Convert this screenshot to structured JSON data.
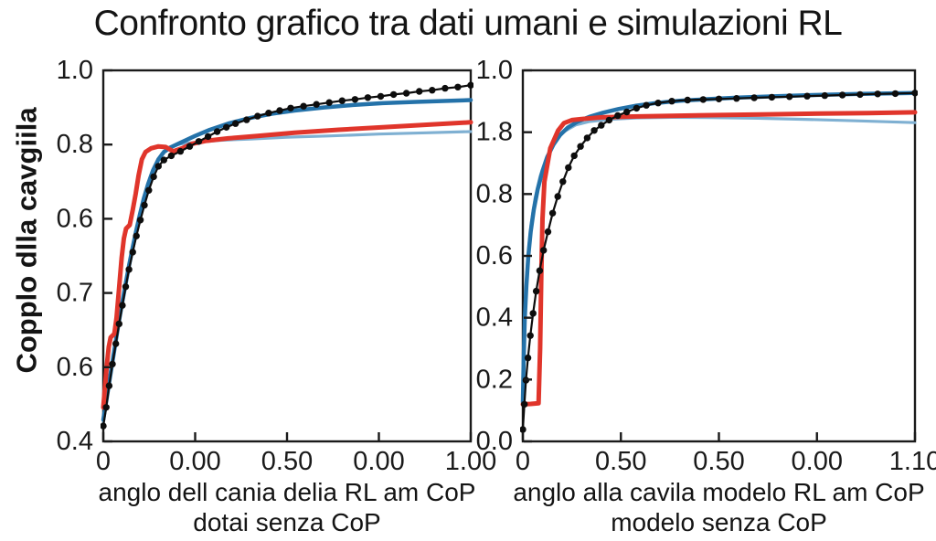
{
  "title": "Confronto grafico tra dati umani e simulazioni RL",
  "background_color": "#ffffff",
  "text_color": "#1a1a1a",
  "chart_data": [
    {
      "type": "line",
      "position": "left",
      "title": "",
      "ylabel": "Copplo dlla cavgiila",
      "xlabel_lines": [
        "anglo dell cania delia RL am CoP",
        "dotai senza CoP"
      ],
      "x_tick_labels": [
        "0",
        "0.00",
        "0.50",
        "0.00",
        "1.00"
      ],
      "y_tick_labels": [
        "1.0",
        "0.8",
        "0.6",
        "0.7",
        "0.6",
        "0.4"
      ],
      "y_value_range": {
        "bottom": 0.4,
        "top": 1.0
      },
      "x_value_range": {
        "left": 0,
        "right": 1
      },
      "grid": false,
      "legend": false,
      "series": [
        {
          "name": "light-blue",
          "color": "#7fb0d2",
          "line_width": 3.2,
          "markers": false,
          "points": [
            [
              0,
              0.43
            ],
            [
              0.012,
              0.48
            ],
            [
              0.025,
              0.53
            ],
            [
              0.04,
              0.582
            ],
            [
              0.055,
              0.632
            ],
            [
              0.07,
              0.68
            ],
            [
              0.085,
              0.724
            ],
            [
              0.1,
              0.762
            ],
            [
              0.115,
              0.796
            ],
            [
              0.13,
              0.826
            ],
            [
              0.145,
              0.85
            ],
            [
              0.16,
              0.866
            ],
            [
              0.18,
              0.876
            ],
            [
              0.21,
              0.881
            ],
            [
              0.26,
              0.884
            ],
            [
              0.32,
              0.887
            ],
            [
              0.4,
              0.889
            ],
            [
              0.5,
              0.892
            ],
            [
              0.62,
              0.894
            ],
            [
              0.75,
              0.897
            ],
            [
              0.88,
              0.899
            ],
            [
              1,
              0.901
            ]
          ]
        },
        {
          "name": "dark-blue",
          "color": "#2472a9",
          "line_width": 4.5,
          "markers": false,
          "points": [
            [
              0,
              0.435
            ],
            [
              0.01,
              0.472
            ],
            [
              0.02,
              0.51
            ],
            [
              0.03,
              0.548
            ],
            [
              0.04,
              0.585
            ],
            [
              0.05,
              0.62
            ],
            [
              0.06,
              0.652
            ],
            [
              0.07,
              0.684
            ],
            [
              0.08,
              0.714
            ],
            [
              0.09,
              0.742
            ],
            [
              0.1,
              0.768
            ],
            [
              0.11,
              0.792
            ],
            [
              0.122,
              0.816
            ],
            [
              0.135,
              0.838
            ],
            [
              0.15,
              0.856
            ],
            [
              0.165,
              0.868
            ],
            [
              0.185,
              0.876
            ],
            [
              0.21,
              0.883
            ],
            [
              0.25,
              0.894
            ],
            [
              0.29,
              0.904
            ],
            [
              0.34,
              0.914
            ],
            [
              0.4,
              0.923
            ],
            [
              0.46,
              0.93
            ],
            [
              0.52,
              0.935
            ],
            [
              0.6,
              0.94
            ],
            [
              0.68,
              0.944
            ],
            [
              0.76,
              0.947
            ],
            [
              0.85,
              0.949
            ],
            [
              1,
              0.952
            ]
          ]
        },
        {
          "name": "red",
          "color": "#e0352b",
          "line_width": 5,
          "markers": false,
          "points": [
            [
              0,
              0.455
            ],
            [
              0.005,
              0.49
            ],
            [
              0.01,
              0.525
            ],
            [
              0.015,
              0.553
            ],
            [
              0.02,
              0.568
            ],
            [
              0.03,
              0.574
            ],
            [
              0.036,
              0.6
            ],
            [
              0.043,
              0.648
            ],
            [
              0.05,
              0.697
            ],
            [
              0.056,
              0.728
            ],
            [
              0.062,
              0.744
            ],
            [
              0.072,
              0.75
            ],
            [
              0.08,
              0.774
            ],
            [
              0.088,
              0.8
            ],
            [
              0.096,
              0.83
            ],
            [
              0.105,
              0.856
            ],
            [
              0.115,
              0.868
            ],
            [
              0.13,
              0.874
            ],
            [
              0.15,
              0.877
            ],
            [
              0.17,
              0.876
            ],
            [
              0.19,
              0.869
            ],
            [
              0.215,
              0.874
            ],
            [
              0.24,
              0.881
            ],
            [
              0.28,
              0.886
            ],
            [
              0.34,
              0.89
            ],
            [
              0.42,
              0.894
            ],
            [
              0.52,
              0.899
            ],
            [
              0.64,
              0.904
            ],
            [
              0.76,
              0.908
            ],
            [
              0.88,
              0.912
            ],
            [
              1,
              0.916
            ]
          ]
        },
        {
          "name": "black-dotted",
          "color": "#0d0d0d",
          "line_width": 2.2,
          "markers": true,
          "marker_radius": 3.7,
          "points": [
            [
              0,
              0.425
            ],
            [
              0.008,
              0.455
            ],
            [
              0.016,
              0.49
            ],
            [
              0.025,
              0.525
            ],
            [
              0.034,
              0.558
            ],
            [
              0.043,
              0.59
            ],
            [
              0.052,
              0.62
            ],
            [
              0.061,
              0.65
            ],
            [
              0.07,
              0.678
            ],
            [
              0.08,
              0.706
            ],
            [
              0.09,
              0.732
            ],
            [
              0.101,
              0.758
            ],
            [
              0.112,
              0.782
            ],
            [
              0.124,
              0.806
            ],
            [
              0.137,
              0.828
            ],
            [
              0.15,
              0.845
            ],
            [
              0.165,
              0.855
            ],
            [
              0.185,
              0.862
            ],
            [
              0.21,
              0.869
            ],
            [
              0.235,
              0.877
            ],
            [
              0.26,
              0.885
            ],
            [
              0.285,
              0.893
            ],
            [
              0.31,
              0.901
            ],
            [
              0.335,
              0.908
            ],
            [
              0.36,
              0.914
            ],
            [
              0.39,
              0.92
            ],
            [
              0.42,
              0.926
            ],
            [
              0.45,
              0.931
            ],
            [
              0.48,
              0.935
            ],
            [
              0.51,
              0.939
            ],
            [
              0.545,
              0.942
            ],
            [
              0.58,
              0.945
            ],
            [
              0.615,
              0.948
            ],
            [
              0.65,
              0.951
            ],
            [
              0.685,
              0.953
            ],
            [
              0.72,
              0.956
            ],
            [
              0.755,
              0.958
            ],
            [
              0.79,
              0.961
            ],
            [
              0.825,
              0.963
            ],
            [
              0.86,
              0.966
            ],
            [
              0.895,
              0.968
            ],
            [
              0.93,
              0.971
            ],
            [
              0.965,
              0.973
            ],
            [
              1,
              0.976
            ]
          ]
        }
      ]
    },
    {
      "type": "line",
      "position": "right",
      "title": "",
      "ylabel": "",
      "xlabel_lines": [
        "anglo alla cavila modelo RL am CoP",
        "modelo senza CoP"
      ],
      "x_tick_labels": [
        "0",
        "0.50",
        "0.50",
        "0.00",
        "1.10"
      ],
      "y_tick_labels": [
        "1.0",
        "1.8",
        "0.8",
        "0.6",
        "0.4",
        "0.2",
        "0.0"
      ],
      "y_value_range": {
        "bottom": 0.0,
        "top": 1.0
      },
      "x_value_range": {
        "left": 0,
        "right": 1
      },
      "grid": false,
      "legend": false,
      "series": [
        {
          "name": "light-blue",
          "color": "#7fb0d2",
          "line_width": 3.2,
          "markers": false,
          "points": [
            [
              0,
              0.145
            ],
            [
              0.003,
              0.28
            ],
            [
              0.007,
              0.4
            ],
            [
              0.013,
              0.5
            ],
            [
              0.021,
              0.585
            ],
            [
              0.031,
              0.655
            ],
            [
              0.044,
              0.715
            ],
            [
              0.06,
              0.765
            ],
            [
              0.08,
              0.805
            ],
            [
              0.105,
              0.835
            ],
            [
              0.135,
              0.853
            ],
            [
              0.17,
              0.862
            ],
            [
              0.22,
              0.868
            ],
            [
              0.29,
              0.872
            ],
            [
              0.38,
              0.8735
            ],
            [
              0.48,
              0.873
            ],
            [
              0.6,
              0.871
            ],
            [
              0.72,
              0.868
            ],
            [
              0.85,
              0.864
            ],
            [
              1,
              0.859
            ]
          ]
        },
        {
          "name": "dark-blue",
          "color": "#2472a9",
          "line_width": 4.5,
          "markers": false,
          "points": [
            [
              0,
              0.105
            ],
            [
              0.002,
              0.22
            ],
            [
              0.005,
              0.33
            ],
            [
              0.009,
              0.42
            ],
            [
              0.014,
              0.5
            ],
            [
              0.02,
              0.565
            ],
            [
              0.028,
              0.625
            ],
            [
              0.038,
              0.68
            ],
            [
              0.05,
              0.728
            ],
            [
              0.063,
              0.768
            ],
            [
              0.078,
              0.8
            ],
            [
              0.095,
              0.826
            ],
            [
              0.115,
              0.846
            ],
            [
              0.14,
              0.862
            ],
            [
              0.17,
              0.875
            ],
            [
              0.205,
              0.886
            ],
            [
              0.245,
              0.896
            ],
            [
              0.29,
              0.905
            ],
            [
              0.34,
              0.912
            ],
            [
              0.4,
              0.918
            ],
            [
              0.47,
              0.9225
            ],
            [
              0.55,
              0.9265
            ],
            [
              0.64,
              0.93
            ],
            [
              0.74,
              0.9335
            ],
            [
              0.86,
              0.9365
            ],
            [
              1,
              0.939
            ]
          ]
        },
        {
          "name": "red",
          "color": "#e0352b",
          "line_width": 5,
          "markers": false,
          "points": [
            [
              0,
              0.1
            ],
            [
              0.02,
              0.101
            ],
            [
              0.04,
              0.103
            ],
            [
              0.044,
              0.25
            ],
            [
              0.047,
              0.45
            ],
            [
              0.05,
              0.6
            ],
            [
              0.055,
              0.7
            ],
            [
              0.07,
              0.79
            ],
            [
              0.09,
              0.838
            ],
            [
              0.105,
              0.858
            ],
            [
              0.125,
              0.866
            ],
            [
              0.15,
              0.869
            ],
            [
              0.2,
              0.8735
            ],
            [
              0.28,
              0.8755
            ],
            [
              0.38,
              0.8775
            ],
            [
              0.5,
              0.8795
            ],
            [
              0.63,
              0.8815
            ],
            [
              0.76,
              0.8835
            ],
            [
              0.88,
              0.885
            ],
            [
              1,
              0.887
            ]
          ]
        },
        {
          "name": "black-dotted",
          "color": "#0d0d0d",
          "line_width": 2.2,
          "markers": true,
          "marker_radius": 3.7,
          "points": [
            [
              0,
              0.032
            ],
            [
              0.004,
              0.1
            ],
            [
              0.008,
              0.165
            ],
            [
              0.013,
              0.225
            ],
            [
              0.019,
              0.285
            ],
            [
              0.026,
              0.345
            ],
            [
              0.034,
              0.405
            ],
            [
              0.043,
              0.46
            ],
            [
              0.053,
              0.515
            ],
            [
              0.064,
              0.565
            ],
            [
              0.076,
              0.615
            ],
            [
              0.089,
              0.66
            ],
            [
              0.102,
              0.7
            ],
            [
              0.116,
              0.738
            ],
            [
              0.131,
              0.77
            ],
            [
              0.147,
              0.795
            ],
            [
              0.164,
              0.818
            ],
            [
              0.182,
              0.838
            ],
            [
              0.2,
              0.852
            ],
            [
              0.22,
              0.866
            ],
            [
              0.242,
              0.878
            ],
            [
              0.265,
              0.888
            ],
            [
              0.29,
              0.898
            ],
            [
              0.315,
              0.906
            ],
            [
              0.345,
              0.912
            ],
            [
              0.38,
              0.917
            ],
            [
              0.42,
              0.92
            ],
            [
              0.46,
              0.9215
            ],
            [
              0.5,
              0.923
            ],
            [
              0.545,
              0.9245
            ],
            [
              0.59,
              0.926
            ],
            [
              0.635,
              0.9275
            ],
            [
              0.68,
              0.929
            ],
            [
              0.725,
              0.9305
            ],
            [
              0.77,
              0.932
            ],
            [
              0.815,
              0.9335
            ],
            [
              0.86,
              0.935
            ],
            [
              0.905,
              0.9365
            ],
            [
              0.95,
              0.9375
            ],
            [
              1,
              0.939
            ]
          ]
        }
      ]
    }
  ]
}
